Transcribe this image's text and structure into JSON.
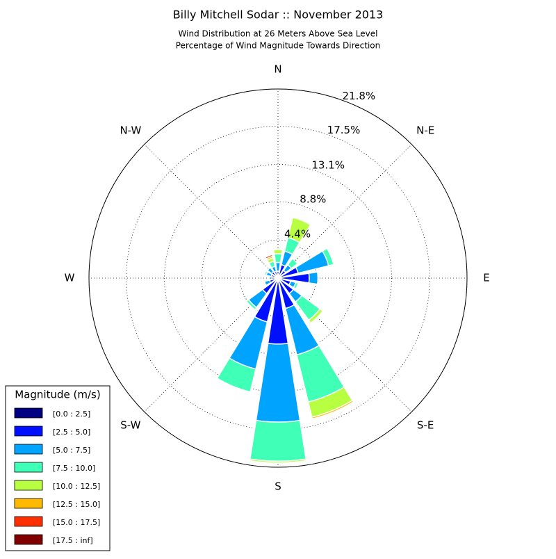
{
  "chart_data": {
    "type": "windrose",
    "title": "Billy Mitchell Sodar :: November 2013",
    "subtitle": [
      "Wind Distribution at 26 Meters Above Sea Level",
      "Percentage of Wind Magnitude Towards Direction"
    ],
    "categories": [
      "N",
      null,
      "N-E",
      null,
      "E",
      null,
      "S-E",
      null,
      "S",
      null,
      "S-W",
      null,
      "W",
      null,
      "N-W",
      null
    ],
    "rlim": [
      0,
      21.8
    ],
    "rticks": [
      {
        "value": 4.4,
        "label": "4.4%"
      },
      {
        "value": 8.8,
        "label": "8.8%"
      },
      {
        "value": 13.1,
        "label": "13.1%"
      },
      {
        "value": 17.5,
        "label": "17.5%"
      },
      {
        "value": 21.8,
        "label": "21.8%"
      }
    ],
    "grid": true,
    "legend_title": "Magnitude (m/s)",
    "legend_position": "lower left",
    "series": [
      {
        "name": "[0.0 : 2.5]",
        "color": "#000080",
        "values": [
          0.3,
          0.3,
          0.3,
          0.3,
          0.3,
          0.3,
          0.3,
          0.3,
          0.3,
          0.3,
          0.3,
          0.3,
          0.3,
          0.3,
          0.3,
          0.3
        ]
      },
      {
        "name": "[2.5 : 5.0]",
        "color": "#0010ff",
        "values": [
          0.5,
          1.3,
          0.8,
          2.1,
          3.3,
          1.2,
          1.9,
          3.3,
          7.3,
          4.9,
          1.9,
          0.7,
          0.4,
          0.5,
          0.6,
          0.5
        ]
      },
      {
        "name": "[5.0 : 7.5]",
        "color": "#00a4ff",
        "values": [
          1.0,
          1.6,
          0.8,
          3.6,
          1.0,
          0.6,
          1.2,
          5.5,
          9.0,
          5.6,
          2.0,
          0.6,
          0.3,
          0.6,
          0.6,
          0.6
        ]
      },
      {
        "name": "[7.5 : 10.0]",
        "color": "#40ffb7",
        "values": [
          1.0,
          1.6,
          0.9,
          0.6,
          0,
          0.3,
          2.6,
          5.6,
          4.5,
          2.7,
          0.3,
          0,
          0,
          0.2,
          0,
          0.6
        ]
      },
      {
        "name": "[10.0 : 12.5]",
        "color": "#b7ff40",
        "values": [
          0.5,
          2.4,
          0,
          0,
          0,
          0,
          0.4,
          1.8,
          0.2,
          0,
          0,
          0,
          0,
          0,
          0,
          0.4
        ]
      },
      {
        "name": "[12.5 : 15.0]",
        "color": "#ffb900",
        "values": [
          0,
          0,
          0,
          0,
          0,
          0,
          0,
          0.2,
          0,
          0,
          0,
          0,
          0,
          0,
          0,
          0.2
        ]
      },
      {
        "name": "[15.0 : 17.5]",
        "color": "#ff3000",
        "values": [
          0,
          0,
          0,
          0,
          0,
          0,
          0,
          0,
          0,
          0,
          0,
          0,
          0,
          0,
          0,
          0.2
        ]
      },
      {
        "name": "[17.5 : inf]",
        "color": "#800000",
        "values": [
          0,
          0,
          0,
          0,
          0,
          0,
          0,
          0,
          0,
          0,
          0,
          0,
          0,
          0,
          0,
          0.1
        ]
      }
    ]
  }
}
